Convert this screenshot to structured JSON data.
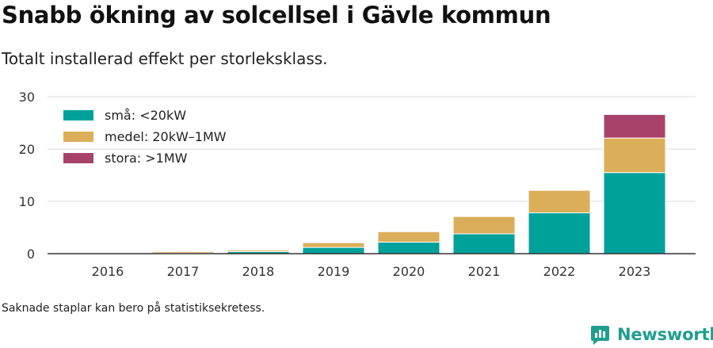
{
  "title": "Snabb ökning av solcellsel i Gävle kommun",
  "subtitle": "Totalt installerad effekt per storleksklass.",
  "footnote": "Saknade staplar kan bero på statistiksekretess.",
  "brand": {
    "name": "Newsworthy",
    "icon": "newsworthy-logo-icon",
    "color": "#1f9e8e"
  },
  "chart_data": {
    "type": "bar",
    "stacked": true,
    "categories": [
      "2016",
      "2017",
      "2018",
      "2019",
      "2020",
      "2021",
      "2022",
      "2023"
    ],
    "series": [
      {
        "name": "små: <20kW",
        "color": "#00a19a",
        "values": [
          0.0,
          0.1,
          0.4,
          1.2,
          2.2,
          3.8,
          7.8,
          15.5
        ]
      },
      {
        "name": "medel: 20kW–1MW",
        "color": "#dbae59",
        "values": [
          0.0,
          0.3,
          0.3,
          0.9,
          2.0,
          3.3,
          4.3,
          6.6
        ]
      },
      {
        "name": "stora: >1MW",
        "color": "#a8426b",
        "values": [
          0.0,
          0.0,
          0.0,
          0.0,
          0.0,
          0.0,
          0.0,
          4.5
        ]
      }
    ],
    "yticks": [
      0,
      10,
      20,
      30
    ],
    "ylim": [
      0,
      30
    ],
    "grid": true,
    "legend": "top-left",
    "xlabel": "",
    "ylabel": ""
  }
}
